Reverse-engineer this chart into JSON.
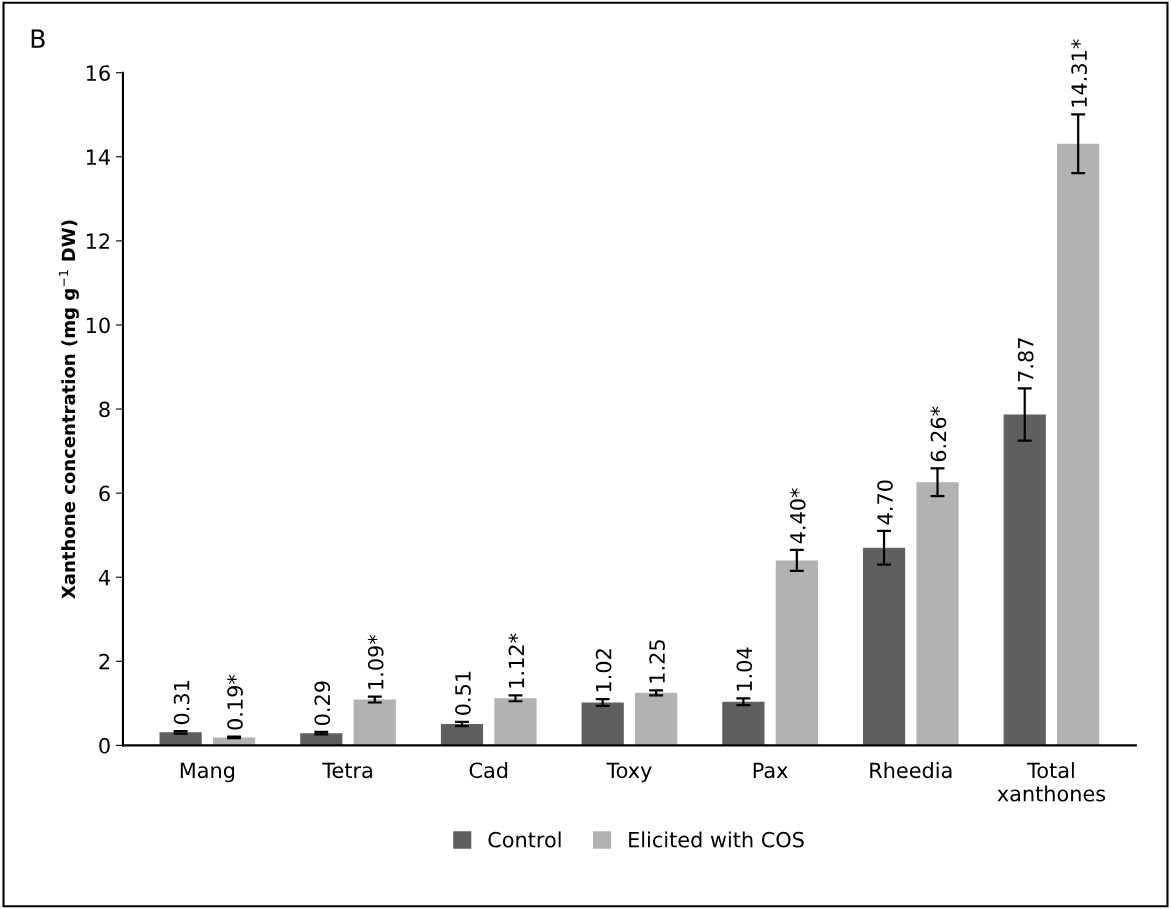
{
  "chart_data": {
    "type": "bar",
    "ylabel": "Xanthone concentration (mg g$^{−1}$ DW)",
    "annotations": [
      "B"
    ],
    "categories": [
      "Mang",
      "Tetra",
      "Cad",
      "Toxy",
      "Pax",
      "Rheedia",
      "Total\nxanthones"
    ],
    "series": [
      {
        "name": "Control",
        "color": "#5f5f5f",
        "values": [
          0.31,
          0.29,
          0.51,
          1.02,
          1.04,
          4.7,
          7.87
        ],
        "errors": [
          0.03,
          0.03,
          0.05,
          0.08,
          0.08,
          0.4,
          0.62
        ],
        "value_labels": [
          "0.31",
          "0.29",
          "0.51",
          "1.02",
          "1.04",
          "4.70",
          "7.87"
        ]
      },
      {
        "name": "Elicited with COS",
        "color": "#b2b2b2",
        "values": [
          0.19,
          1.09,
          1.12,
          1.25,
          4.4,
          6.26,
          14.31
        ],
        "errors": [
          0.02,
          0.07,
          0.07,
          0.06,
          0.25,
          0.33,
          0.7
        ],
        "value_labels": [
          "0.19*",
          "1.09*",
          "1.12*",
          "1.25",
          "4.40*",
          "6.26*",
          "14.31*"
        ]
      }
    ],
    "ylim": [
      0,
      16
    ],
    "yticks": [
      0,
      2,
      4,
      6,
      8,
      10,
      12,
      14,
      16
    ],
    "grid": false,
    "legend": "bottom"
  }
}
